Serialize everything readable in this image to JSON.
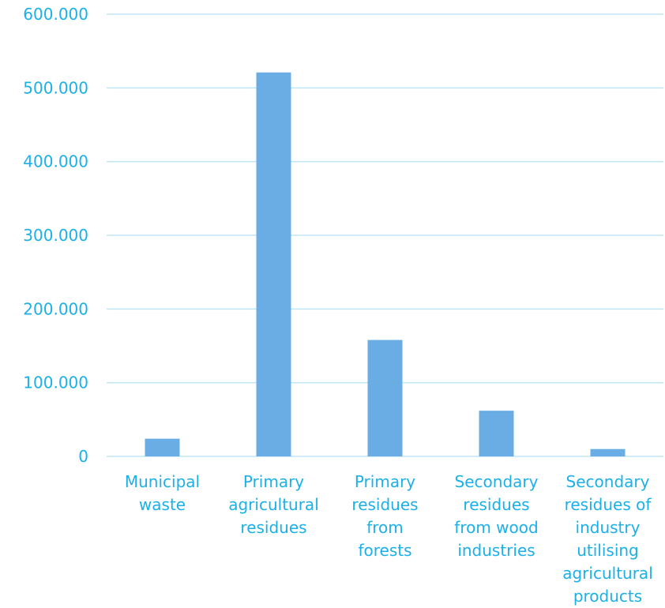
{
  "chart_data": {
    "type": "bar",
    "categories": [
      [
        "Municipal",
        "waste"
      ],
      [
        "Primary",
        "agricultural",
        "residues"
      ],
      [
        "Primary",
        "residues",
        "from",
        "forests"
      ],
      [
        "Secondary",
        "residues",
        "from wood",
        "industries"
      ],
      [
        "Secondary",
        "residues of",
        "industry",
        "utilising",
        "agricultural",
        "products"
      ]
    ],
    "values": [
      24000,
      521000,
      158000,
      62000,
      10000
    ],
    "yticks": [
      "0",
      "100.000",
      "200.000",
      "300.000",
      "400.000",
      "500.000",
      "600.000"
    ],
    "ylim": [
      0,
      600000
    ],
    "grid": true,
    "colors": {
      "bar": "#6aade4",
      "grid": "#bfe6f5",
      "text": "#1bb0e8"
    }
  }
}
